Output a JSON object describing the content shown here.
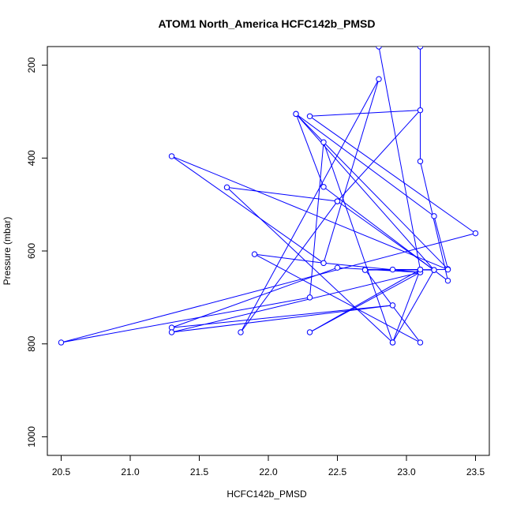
{
  "chart_data": {
    "type": "line",
    "title": "ATOM1 North_America HCFC142b_PMSD",
    "xlabel": "HCFC142b_PMSD",
    "ylabel": "Pressure (mbar)",
    "xlim": [
      20.4,
      23.6
    ],
    "ylim": [
      1040,
      160
    ],
    "y_axis_reversed": true,
    "grid": false,
    "legend": "none",
    "x_ticks": [
      "20.5",
      "21.0",
      "21.5",
      "22.0",
      "22.5",
      "23.0",
      "23.5"
    ],
    "y_ticks": [
      "200",
      "400",
      "600",
      "800",
      "1000"
    ],
    "series": [
      {
        "color": "#0000ff",
        "marker": "open-circle",
        "x": [
          23.1,
          23.1,
          23.3,
          22.4,
          22.2,
          23.3,
          23.2,
          22.2,
          23.2,
          22.9,
          22.4,
          22.3,
          20.5,
          23.5,
          22.3,
          23.1,
          22.5,
          21.8,
          22.8,
          22.4,
          23.1,
          22.5,
          21.3,
          22.9,
          21.3,
          23.1,
          22.3,
          23.1,
          22.9,
          21.7,
          22.5,
          23.2,
          22.7,
          23.1,
          21.9,
          22.4,
          21.3,
          23.3,
          22.7,
          22.9,
          23.1,
          22.8
        ],
        "y": [
          160,
          407,
          664,
          462,
          305,
          639,
          525,
          305,
          641,
          797,
          366,
          700,
          797,
          562,
          310,
          297,
          493,
          775,
          230,
          626,
          646,
          636,
          765,
          717,
          775,
          646,
          775,
          640,
          797,
          463,
          493,
          641,
          640,
          797,
          607,
          626,
          396,
          640,
          641,
          640,
          640,
          160
        ]
      }
    ]
  }
}
